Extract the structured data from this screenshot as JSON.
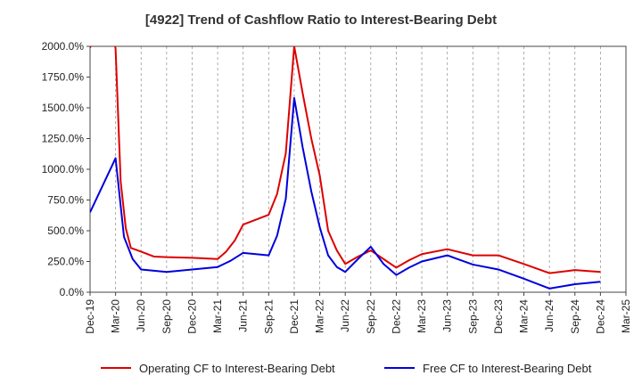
{
  "chart_data": {
    "type": "line",
    "title": "[4922]  Trend of Cashflow Ratio to Interest-Bearing Debt",
    "xlabel": "",
    "ylabel": "",
    "ylim": [
      0,
      2000
    ],
    "y_ticks": [
      0,
      250,
      500,
      750,
      1000,
      1250,
      1500,
      1750,
      2000
    ],
    "y_tick_labels": [
      "0.0%",
      "250.0%",
      "500.0%",
      "750.0%",
      "1000.0%",
      "1250.0%",
      "1500.0%",
      "1750.0%",
      "2000.0%"
    ],
    "x_tick_labels": [
      "Dec-19",
      "Mar-20",
      "Jun-20",
      "Sep-20",
      "Dec-20",
      "Mar-21",
      "Jun-21",
      "Sep-21",
      "Dec-21",
      "Mar-22",
      "Jun-22",
      "Sep-22",
      "Dec-22",
      "Mar-23",
      "Jun-23",
      "Sep-23",
      "Dec-23",
      "Mar-24",
      "Jun-24",
      "Sep-24",
      "Dec-24",
      "Mar-25"
    ],
    "grid": "vertical dashed",
    "legend_position": "bottom",
    "series": [
      {
        "name": "Operating CF to Interest-Bearing Debt",
        "color": "#dd0000",
        "points": [
          [
            0,
            1990
          ],
          [
            0.5,
            2200
          ],
          [
            0.9,
            2100
          ],
          [
            1.0,
            1980
          ],
          [
            1.2,
            900
          ],
          [
            1.4,
            520
          ],
          [
            1.6,
            360
          ],
          [
            2,
            330
          ],
          [
            2.5,
            290
          ],
          [
            3,
            285
          ],
          [
            4,
            280
          ],
          [
            5,
            270
          ],
          [
            5.33,
            330
          ],
          [
            5.67,
            420
          ],
          [
            6,
            550
          ],
          [
            6.5,
            590
          ],
          [
            7,
            630
          ],
          [
            7.33,
            800
          ],
          [
            7.67,
            1130
          ],
          [
            8,
            2000
          ],
          [
            8.33,
            1620
          ],
          [
            8.67,
            1250
          ],
          [
            9,
            950
          ],
          [
            9.33,
            500
          ],
          [
            9.67,
            340
          ],
          [
            10,
            230
          ],
          [
            10.5,
            290
          ],
          [
            11,
            340
          ],
          [
            11.5,
            270
          ],
          [
            12,
            200
          ],
          [
            12.5,
            260
          ],
          [
            13,
            310
          ],
          [
            14,
            350
          ],
          [
            15,
            300
          ],
          [
            16,
            300
          ],
          [
            17,
            230
          ],
          [
            18,
            155
          ],
          [
            19,
            180
          ],
          [
            20,
            165
          ]
        ]
      },
      {
        "name": "Free CF to Interest-Bearing Debt",
        "color": "#0000dd",
        "points": [
          [
            0,
            650
          ],
          [
            1,
            1090
          ],
          [
            1.33,
            450
          ],
          [
            1.67,
            270
          ],
          [
            2,
            185
          ],
          [
            3,
            165
          ],
          [
            4,
            185
          ],
          [
            5,
            205
          ],
          [
            5.5,
            255
          ],
          [
            6,
            320
          ],
          [
            7,
            300
          ],
          [
            7.33,
            460
          ],
          [
            7.67,
            760
          ],
          [
            8,
            1580
          ],
          [
            8.33,
            1180
          ],
          [
            8.67,
            820
          ],
          [
            9,
            530
          ],
          [
            9.33,
            300
          ],
          [
            9.67,
            205
          ],
          [
            10,
            165
          ],
          [
            10.5,
            270
          ],
          [
            11,
            370
          ],
          [
            11.5,
            230
          ],
          [
            12,
            140
          ],
          [
            12.5,
            200
          ],
          [
            13,
            250
          ],
          [
            14,
            300
          ],
          [
            15,
            225
          ],
          [
            16,
            185
          ],
          [
            17,
            110
          ],
          [
            18,
            30
          ],
          [
            19,
            65
          ],
          [
            20,
            85
          ]
        ]
      }
    ]
  }
}
